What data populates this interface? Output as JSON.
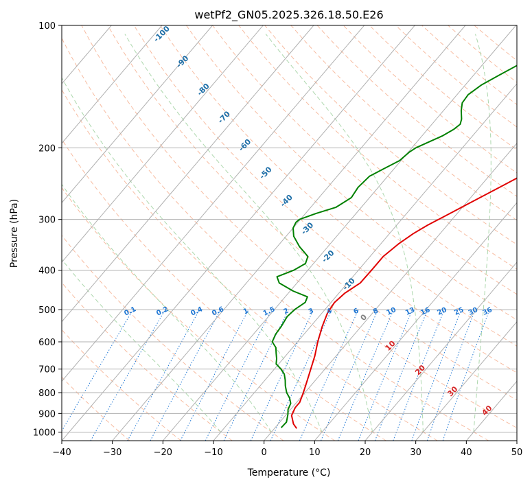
{
  "chart_data": {
    "type": "line",
    "title": "wetPf2_GN05.2025.326.18.50.E26",
    "xlabel": "Temperature (°C)",
    "ylabel": "Pressure (hPa)",
    "xlim": [
      -40,
      50
    ],
    "ylim": [
      1050,
      100
    ],
    "y_scale": "log",
    "x_ticks": [
      "−40",
      "−30",
      "−20",
      "−10",
      "0",
      "10",
      "20",
      "30",
      "40",
      "50"
    ],
    "y_ticks": [
      "100",
      "200",
      "300",
      "400",
      "500",
      "600",
      "700",
      "800",
      "900",
      "1000"
    ],
    "grid": true,
    "series": [
      {
        "color": "#e00000",
        "points": [
          [
            4.4,
            980
          ],
          [
            3.0,
            955
          ],
          [
            1.2,
            910
          ],
          [
            0.6,
            870
          ],
          [
            0.6,
            845
          ],
          [
            -0.3,
            800
          ],
          [
            -1.5,
            750
          ],
          [
            -2.8,
            700
          ],
          [
            -4.2,
            650
          ],
          [
            -6.0,
            600
          ],
          [
            -7.7,
            550
          ],
          [
            -8.9,
            510
          ],
          [
            -9.3,
            480
          ],
          [
            -8.8,
            455
          ],
          [
            -7.5,
            430
          ],
          [
            -7.4,
            400
          ],
          [
            -7.4,
            370
          ],
          [
            -6.5,
            345
          ],
          [
            -5.3,
            325
          ],
          [
            -3.9,
            310
          ],
          [
            -2.7,
            300
          ],
          [
            0.5,
            275
          ],
          [
            4.0,
            250
          ],
          [
            7.8,
            225
          ],
          [
            11.2,
            200
          ],
          [
            14.3,
            180
          ],
          [
            17.0,
            160
          ],
          [
            20.5,
            140
          ],
          [
            24.0,
            125
          ],
          [
            27.6,
            115
          ],
          [
            31.0,
            108
          ],
          [
            33.9,
            100
          ]
        ]
      },
      {
        "color": "#008000",
        "points": [
          [
            1.2,
            975
          ],
          [
            1.3,
            945
          ],
          [
            0.3,
            905
          ],
          [
            -0.5,
            880
          ],
          [
            -1.0,
            850
          ],
          [
            -2.1,
            825
          ],
          [
            -3.6,
            800
          ],
          [
            -5.0,
            770
          ],
          [
            -6.0,
            745
          ],
          [
            -7.2,
            720
          ],
          [
            -8.7,
            700
          ],
          [
            -10.5,
            680
          ],
          [
            -11.3,
            660
          ],
          [
            -12.3,
            640
          ],
          [
            -13.3,
            620
          ],
          [
            -15.0,
            600
          ],
          [
            -15.6,
            575
          ],
          [
            -15.8,
            550
          ],
          [
            -16.3,
            520
          ],
          [
            -16.0,
            500
          ],
          [
            -15.1,
            480
          ],
          [
            -15.6,
            465
          ],
          [
            -19.4,
            450
          ],
          [
            -23.5,
            430
          ],
          [
            -25.0,
            415
          ],
          [
            -22.8,
            400
          ],
          [
            -21.6,
            385
          ],
          [
            -22.3,
            370
          ],
          [
            -25.6,
            350
          ],
          [
            -28.5,
            330
          ],
          [
            -30.0,
            315
          ],
          [
            -30.4,
            305
          ],
          [
            -30.2,
            300
          ],
          [
            -27.9,
            290
          ],
          [
            -25.0,
            280
          ],
          [
            -23.6,
            265
          ],
          [
            -24.0,
            250
          ],
          [
            -23.6,
            235
          ],
          [
            -22.0,
            225
          ],
          [
            -20.3,
            215
          ],
          [
            -19.8,
            205
          ],
          [
            -19.2,
            200
          ],
          [
            -18.0,
            195
          ],
          [
            -16.0,
            187
          ],
          [
            -14.8,
            180
          ],
          [
            -14.4,
            175
          ],
          [
            -15.0,
            170
          ],
          [
            -16.5,
            162
          ],
          [
            -17.6,
            155
          ],
          [
            -17.8,
            148
          ],
          [
            -16.8,
            140
          ],
          [
            -14.8,
            132
          ],
          [
            -12.9,
            125
          ],
          [
            -12.3,
            118
          ],
          [
            -11.6,
            112
          ],
          [
            -10.1,
            106
          ],
          [
            -8.1,
            100
          ]
        ]
      }
    ],
    "dry_adiabats": [
      -30,
      -20,
      -10,
      0,
      10,
      20,
      30,
      40,
      50,
      60,
      70,
      80,
      90,
      100,
      110,
      120,
      130,
      140,
      150,
      160,
      170,
      180,
      190,
      200
    ],
    "moist_adiabats": [
      -10,
      0,
      10,
      20,
      30,
      40
    ],
    "wet_bulb_potential_temperature_labels": [
      "-100",
      "-90",
      "-80",
      "-70",
      "-60",
      "-50",
      "-40",
      "-30",
      "-20",
      "-10"
    ],
    "mixing_ratio_labels": [
      "0.1",
      "0.2",
      "0.4",
      "0.6",
      "1",
      "1.5",
      "2",
      "3",
      "4",
      "6",
      "8",
      "10",
      "13",
      "16",
      "20",
      "25",
      "30",
      "36"
    ],
    "mixing_ratio_values": [
      0.1,
      0.2,
      0.4,
      0.6,
      1,
      1.5,
      2,
      3,
      4,
      6,
      8,
      10,
      13,
      16,
      20,
      25,
      30,
      36
    ],
    "isotherm_labels": [
      "0",
      "10",
      "20",
      "30",
      "40"
    ],
    "isotherm_values": [
      0,
      10,
      20,
      30,
      40
    ],
    "colors": {
      "temperature": "#e00000",
      "dewpoint": "#008000",
      "dry_adiabat": "#f4a582",
      "moist_adiabat": "#9dd09d",
      "mixing_ratio": "#1f77d4",
      "wbpt_label": "#1f6fa8",
      "isotherm_label": "#d62728",
      "grid": "#b0b0b0",
      "theta_curve": "#d8c9b0"
    }
  }
}
